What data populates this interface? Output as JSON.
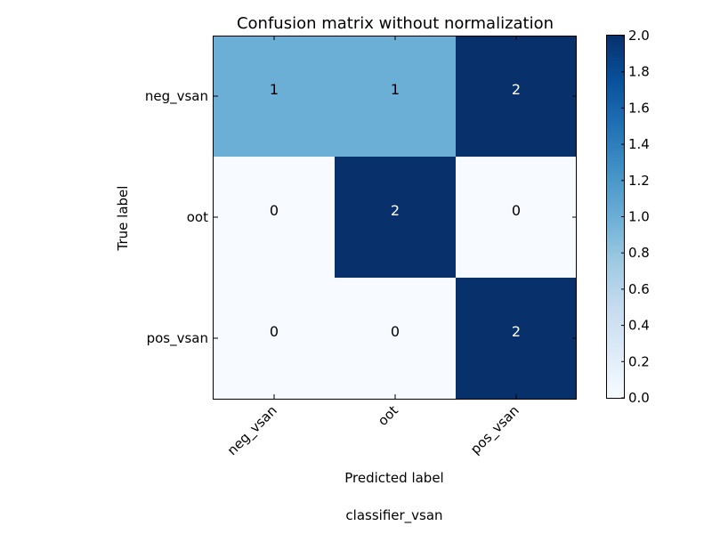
{
  "chart_data": {
    "type": "heatmap",
    "title": "Confusion matrix without normalization",
    "xlabel": "Predicted label",
    "ylabel": "True label",
    "caption": "classifier_vsan",
    "x_categories": [
      "neg_vsan",
      "oot",
      "pos_vsan"
    ],
    "y_categories": [
      "neg_vsan",
      "oot",
      "pos_vsan"
    ],
    "matrix": [
      [
        1,
        1,
        2
      ],
      [
        0,
        2,
        0
      ],
      [
        0,
        0,
        2
      ]
    ],
    "cell_labels": [
      [
        "1",
        "1",
        "2"
      ],
      [
        "0",
        "2",
        "0"
      ],
      [
        "0",
        "0",
        "2"
      ]
    ],
    "colorbar": {
      "range": [
        0,
        2
      ],
      "ticks": [
        0.0,
        0.2,
        0.4,
        0.6,
        0.8,
        1.0,
        1.2,
        1.4,
        1.6,
        1.8,
        2.0
      ],
      "tick_labels": [
        "0.0",
        "0.2",
        "0.4",
        "0.6",
        "0.8",
        "1.0",
        "1.2",
        "1.4",
        "1.6",
        "1.8",
        "2.0"
      ],
      "colormap": "Blues",
      "low_color": "#f7fbff",
      "mid_color": "#6baed6",
      "high_color": "#08306b"
    },
    "grid": false
  }
}
